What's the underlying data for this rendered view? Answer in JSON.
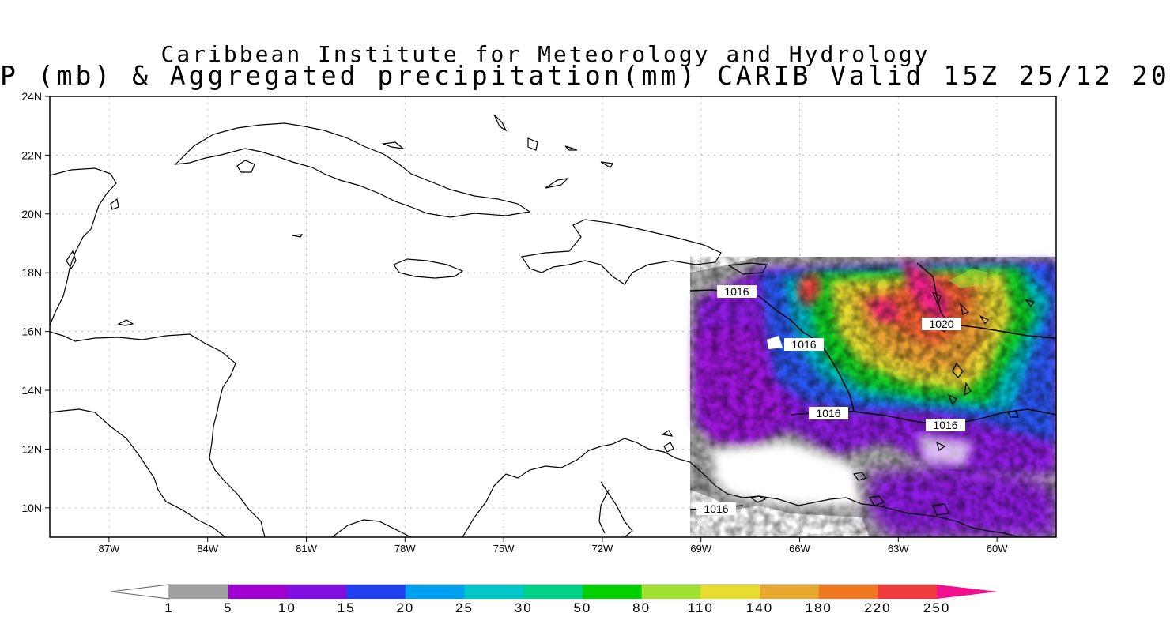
{
  "title": {
    "line1": "Caribbean Institute for Meteorology and Hydrology",
    "line2": "P (mb) & Aggregated precipitation(mm) CARIB Valid 15Z 25/12 20"
  },
  "axes": {
    "lat_labels": [
      "24N",
      "22N",
      "20N",
      "18N",
      "16N",
      "14N",
      "12N",
      "10N"
    ],
    "lon_labels": [
      "87W",
      "84W",
      "81W",
      "78W",
      "75W",
      "72W",
      "69W",
      "66W",
      "63W",
      "60W"
    ],
    "lat_range": [
      9,
      24
    ],
    "lon_range": [
      -88.8,
      -58.2
    ],
    "grid": "dotted"
  },
  "isobars": [
    {
      "label": "1016"
    },
    {
      "label": "1020"
    },
    {
      "label": "1016"
    },
    {
      "label": "1016"
    },
    {
      "label": "1016"
    },
    {
      "label": "1016"
    }
  ],
  "colorbar": {
    "unit": "mm",
    "ticks": [
      "1",
      "5",
      "10",
      "15",
      "20",
      "25",
      "30",
      "50",
      "80",
      "110",
      "140",
      "180",
      "220",
      "250"
    ],
    "colors": [
      "#ffffff",
      "#a0a0a0",
      "#a000d0",
      "#8010e0",
      "#2040f0",
      "#00a0f0",
      "#00c8c8",
      "#00d088",
      "#00d000",
      "#a0e030",
      "#e8dc30",
      "#e8a830",
      "#f07820",
      "#f03c3c",
      "#f01090"
    ]
  },
  "map_colors": {
    "coast": "#000000",
    "isobar": "#000000",
    "frame": "#000000",
    "grid": "#bbbbbb"
  }
}
